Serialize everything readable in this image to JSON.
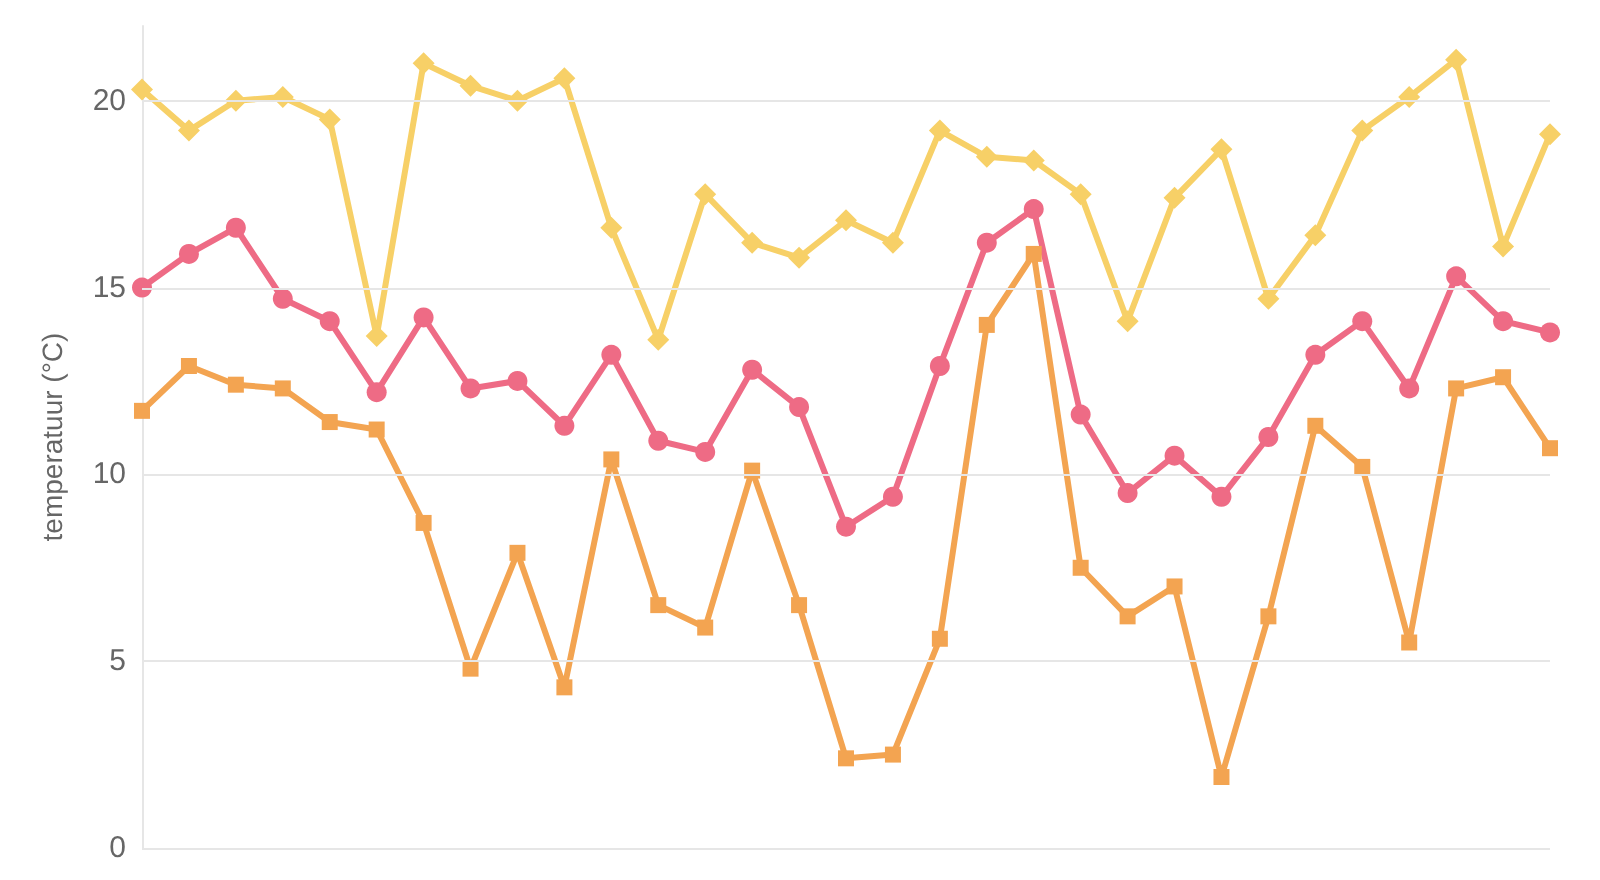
{
  "chart_data": {
    "type": "line",
    "ylabel": "temperatuur (°C)",
    "categories": [
      null,
      null,
      null,
      null,
      null,
      null,
      null,
      null,
      null,
      null,
      null,
      null,
      null,
      null,
      null,
      null,
      null,
      null,
      null,
      null,
      null,
      null,
      null,
      null,
      null,
      null,
      null,
      null,
      null,
      null,
      null
    ],
    "series": [
      {
        "color": "#f7d067",
        "marker": "diamond",
        "values": [
          20.3,
          19.2,
          20.0,
          20.1,
          19.5,
          13.7,
          21.0,
          20.4,
          20.0,
          20.6,
          16.6,
          13.6,
          17.5,
          16.2,
          15.8,
          16.8,
          16.2,
          19.2,
          18.5,
          18.4,
          17.5,
          14.1,
          17.4,
          18.7,
          14.7,
          16.4,
          19.2,
          20.1,
          21.1,
          16.1,
          19.1
        ]
      },
      {
        "color": "#ee6b85",
        "marker": "circle",
        "values": [
          15.0,
          15.9,
          16.6,
          14.7,
          14.1,
          12.2,
          14.2,
          12.3,
          12.5,
          11.3,
          13.2,
          10.9,
          10.6,
          12.8,
          11.8,
          8.6,
          9.4,
          12.9,
          16.2,
          17.1,
          11.6,
          9.5,
          10.5,
          9.4,
          11.0,
          13.2,
          14.1,
          12.3,
          15.3,
          14.1,
          13.8
        ]
      },
      {
        "color": "#f3a451",
        "marker": "square",
        "values": [
          11.7,
          12.9,
          12.4,
          12.3,
          11.4,
          11.2,
          8.7,
          4.8,
          7.9,
          4.3,
          10.4,
          6.5,
          5.9,
          10.1,
          6.5,
          2.4,
          2.5,
          5.6,
          14.0,
          15.9,
          7.5,
          6.2,
          7.0,
          1.9,
          6.2,
          11.3,
          10.2,
          5.5,
          12.3,
          12.6,
          10.7
        ]
      }
    ],
    "ylim": [
      0,
      22
    ],
    "yticks": [
      0,
      5,
      10,
      15,
      20
    ],
    "grid": "y",
    "line_style": "solid"
  }
}
